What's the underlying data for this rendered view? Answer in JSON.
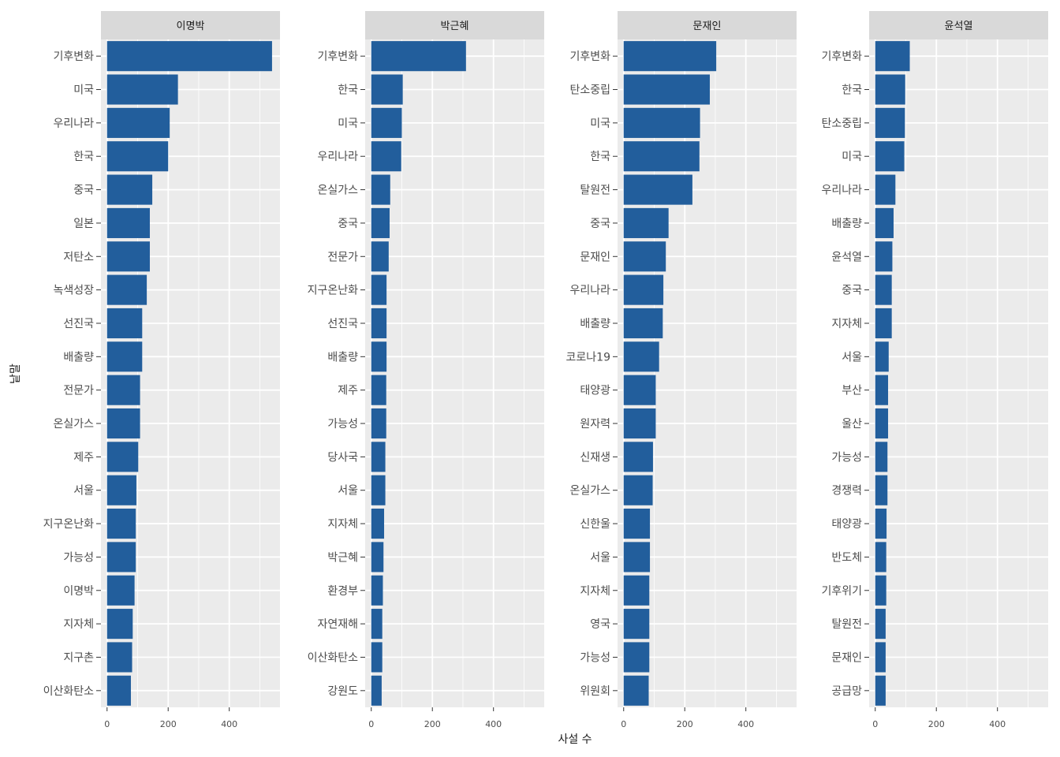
{
  "chart_data": {
    "type": "bar",
    "orientation": "horizontal",
    "facet_layout": "1x4, shared x scale, free y scale",
    "xlabel": "사설 수",
    "ylabel": "낱말",
    "xlim": [
      -20,
      566
    ],
    "xticks": [
      0,
      200,
      400
    ],
    "grid": true,
    "bar_color": "#225E9C",
    "panel_background": "#EBEBEB",
    "strip_background": "#D9D9D9",
    "facets": [
      {
        "label": "이명박",
        "categories": [
          "기후변화",
          "미국",
          "우리나라",
          "한국",
          "중국",
          "일본",
          "저탄소",
          "녹색성장",
          "선진국",
          "배출량",
          "전문가",
          "온실가스",
          "제주",
          "서울",
          "지구온난화",
          "가능성",
          "이명박",
          "지자체",
          "지구촌",
          "이산화탄소"
        ],
        "values": [
          540,
          232,
          205,
          200,
          148,
          140,
          140,
          130,
          115,
          115,
          108,
          108,
          102,
          96,
          94,
          94,
          90,
          84,
          82,
          78
        ]
      },
      {
        "label": "박근혜",
        "categories": [
          "기후변화",
          "한국",
          "미국",
          "우리나라",
          "온실가스",
          "중국",
          "전문가",
          "지구온난화",
          "선진국",
          "배출량",
          "제주",
          "가능성",
          "당사국",
          "서울",
          "지자체",
          "박근혜",
          "환경부",
          "자연재해",
          "이산화탄소",
          "강원도"
        ],
        "values": [
          310,
          103,
          100,
          98,
          62,
          60,
          57,
          50,
          50,
          50,
          49,
          49,
          46,
          46,
          42,
          40,
          38,
          36,
          36,
          34
        ]
      },
      {
        "label": "문재인",
        "categories": [
          "기후변화",
          "탄소중립",
          "미국",
          "한국",
          "탈원전",
          "중국",
          "문재인",
          "우리나라",
          "배출량",
          "코로나19",
          "태양광",
          "원자력",
          "신재생",
          "온실가스",
          "신한울",
          "서울",
          "지자체",
          "영국",
          "가능성",
          "위원회"
        ],
        "values": [
          303,
          282,
          250,
          248,
          225,
          147,
          138,
          130,
          128,
          116,
          105,
          105,
          96,
          95,
          86,
          86,
          84,
          84,
          84,
          82
        ]
      },
      {
        "label": "윤석열",
        "categories": [
          "기후변화",
          "한국",
          "탄소중립",
          "미국",
          "우리나라",
          "배출량",
          "윤석열",
          "중국",
          "지자체",
          "서울",
          "부산",
          "울산",
          "가능성",
          "경쟁력",
          "태양광",
          "반도체",
          "기후위기",
          "탈원전",
          "문재인",
          "공급망"
        ],
        "values": [
          113,
          98,
          97,
          95,
          66,
          60,
          56,
          54,
          54,
          44,
          42,
          42,
          40,
          40,
          37,
          36,
          36,
          34,
          34,
          34
        ]
      }
    ]
  }
}
